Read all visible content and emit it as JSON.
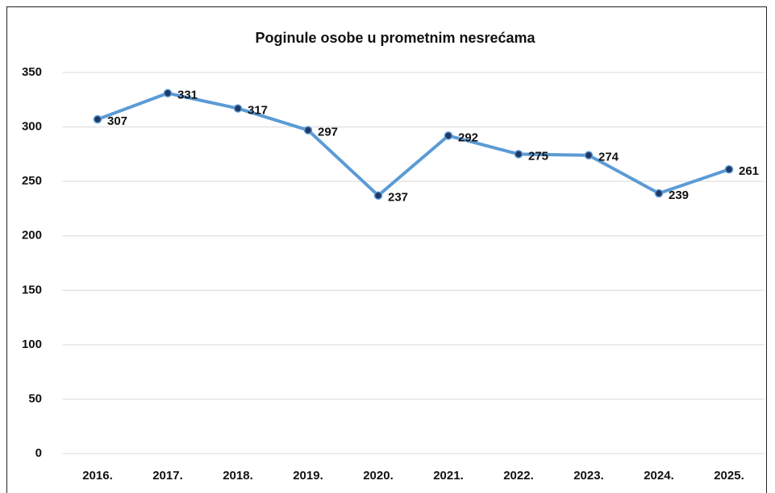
{
  "chart_data": {
    "type": "line",
    "title": "Poginule osobe u prometnim nesrećama",
    "categories": [
      "2016.",
      "2017.",
      "2018.",
      "2019.",
      "2020.",
      "2021.",
      "2022.",
      "2023.",
      "2024.",
      "2025."
    ],
    "values": [
      307,
      331,
      317,
      297,
      237,
      292,
      275,
      274,
      239,
      261
    ],
    "color": "#5b9bd5",
    "marker_color": "#1f3864",
    "ylim": [
      0,
      350
    ],
    "yticks": [
      0,
      50,
      100,
      150,
      200,
      250,
      300,
      350
    ],
    "grid": true
  }
}
